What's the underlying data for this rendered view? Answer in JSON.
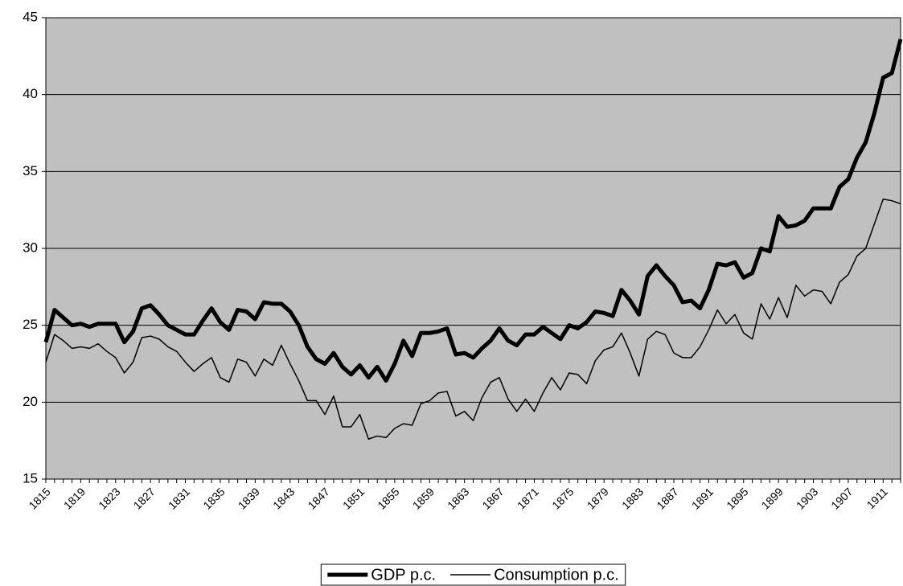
{
  "chart_data": {
    "type": "line",
    "categories": [
      "1815",
      null,
      null,
      null,
      "1819",
      null,
      null,
      null,
      "1823",
      null,
      null,
      null,
      "1827",
      null,
      null,
      null,
      "1831",
      null,
      null,
      null,
      "1835",
      null,
      null,
      null,
      "1839",
      null,
      null,
      null,
      "1843",
      null,
      null,
      null,
      "1847",
      null,
      null,
      null,
      "1851",
      null,
      null,
      null,
      "1855",
      null,
      null,
      null,
      "1859",
      null,
      null,
      null,
      "1863",
      null,
      null,
      null,
      "1867",
      null,
      null,
      null,
      "1871",
      null,
      null,
      null,
      "1875",
      null,
      null,
      null,
      "1879",
      null,
      null,
      null,
      "1883",
      null,
      null,
      null,
      "1887",
      null,
      null,
      null,
      "1891",
      null,
      null,
      null,
      "1895",
      null,
      null,
      null,
      "1899",
      null,
      null,
      null,
      "1903",
      null,
      null,
      null,
      "1907",
      null,
      null,
      null,
      "1911",
      null,
      null
    ],
    "series": [
      {
        "name": "GDP p.c.",
        "color": "#000000",
        "width": 5,
        "values": [
          23.9,
          26.0,
          25.5,
          25.0,
          25.1,
          24.9,
          25.1,
          25.1,
          25.1,
          23.9,
          24.6,
          26.1,
          26.3,
          25.7,
          25.0,
          24.7,
          24.4,
          24.4,
          25.3,
          26.1,
          25.2,
          24.7,
          26.0,
          25.9,
          25.4,
          26.5,
          26.4,
          26.4,
          25.9,
          25.0,
          23.6,
          22.8,
          22.5,
          23.2,
          22.3,
          21.8,
          22.4,
          21.6,
          22.3,
          21.4,
          22.5,
          24.0,
          23.0,
          24.5,
          24.5,
          24.6,
          24.8,
          23.1,
          23.2,
          22.9,
          23.5,
          24.0,
          24.8,
          24.0,
          23.7,
          24.4,
          24.4,
          24.9,
          24.5,
          24.1,
          25.0,
          24.8,
          25.2,
          25.9,
          25.8,
          25.6,
          27.3,
          26.6,
          25.7,
          28.2,
          28.9,
          28.2,
          27.6,
          26.5,
          26.6,
          26.1,
          27.3,
          29.0,
          28.9,
          29.1,
          28.1,
          28.4,
          30.0,
          29.8,
          32.1,
          31.4,
          31.5,
          31.8,
          32.6,
          32.6,
          32.6,
          34.0,
          34.5,
          35.9,
          36.9,
          38.8,
          41.1,
          41.4,
          43.6
        ]
      },
      {
        "name": "Consumption p.c.",
        "color": "#000000",
        "width": 1.5,
        "values": [
          22.6,
          24.4,
          24.0,
          23.5,
          23.6,
          23.5,
          23.8,
          23.3,
          22.9,
          21.9,
          22.6,
          24.2,
          24.3,
          24.1,
          23.6,
          23.3,
          22.6,
          22.0,
          22.5,
          22.9,
          21.6,
          21.3,
          22.8,
          22.6,
          21.7,
          22.8,
          22.4,
          23.7,
          22.5,
          21.4,
          20.1,
          20.1,
          19.2,
          20.4,
          18.4,
          18.4,
          19.2,
          17.6,
          17.8,
          17.7,
          18.3,
          18.6,
          18.5,
          19.9,
          20.1,
          20.6,
          20.7,
          19.1,
          19.4,
          18.8,
          20.3,
          21.3,
          21.6,
          20.2,
          19.4,
          20.2,
          19.4,
          20.6,
          21.6,
          20.8,
          21.9,
          21.8,
          21.2,
          22.7,
          23.4,
          23.6,
          24.5,
          23.2,
          21.7,
          24.1,
          24.6,
          24.4,
          23.2,
          22.9,
          22.9,
          23.6,
          24.7,
          26.0,
          25.1,
          25.7,
          24.5,
          24.1,
          26.4,
          25.4,
          26.8,
          25.5,
          27.6,
          26.9,
          27.3,
          27.2,
          26.4,
          27.8,
          28.3,
          29.5,
          30.0,
          31.6,
          33.2,
          33.1,
          32.9
        ]
      }
    ],
    "ylim": [
      15,
      45
    ],
    "yticks": [
      15,
      20,
      25,
      30,
      35,
      40,
      45
    ],
    "grid": true,
    "plot_background": "#c0c0c0",
    "legend": "bottom"
  }
}
